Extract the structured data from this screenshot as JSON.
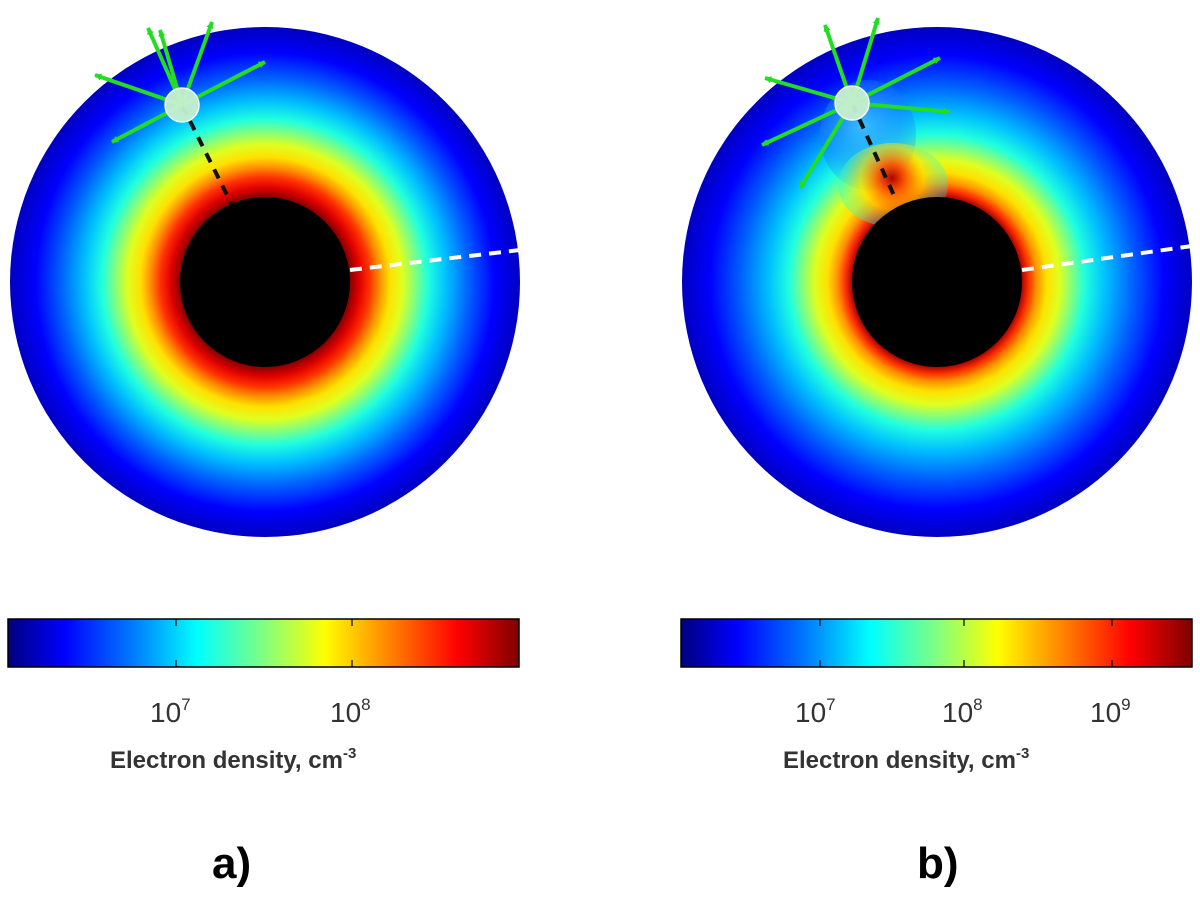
{
  "colors": {
    "jet": [
      "#00007f",
      "#0000d0",
      "#0000ff",
      "#0060ff",
      "#00c0ff",
      "#20ffdf",
      "#80ff80",
      "#dfff20",
      "#ffe000",
      "#ff9000",
      "#ff3000",
      "#df0000",
      "#7f0000"
    ],
    "core": "#000000",
    "arrows": "#22dd22",
    "source": "#c8f0d0",
    "line_black": "#111111",
    "line_white": "#ffffff"
  },
  "panels": [
    {
      "id": "a",
      "label": "a)",
      "colorbar": {
        "ticks": [
          {
            "base": "10",
            "exp": "7"
          },
          {
            "base": "10",
            "exp": "8"
          }
        ],
        "label": "Electron density, cm",
        "label_exp": "-3"
      }
    },
    {
      "id": "b",
      "label": "b)",
      "colorbar": {
        "ticks": [
          {
            "base": "10",
            "exp": "7"
          },
          {
            "base": "10",
            "exp": "8"
          },
          {
            "base": "10",
            "exp": "9"
          }
        ],
        "label": "Electron density, cm",
        "label_exp": "-3"
      }
    }
  ]
}
